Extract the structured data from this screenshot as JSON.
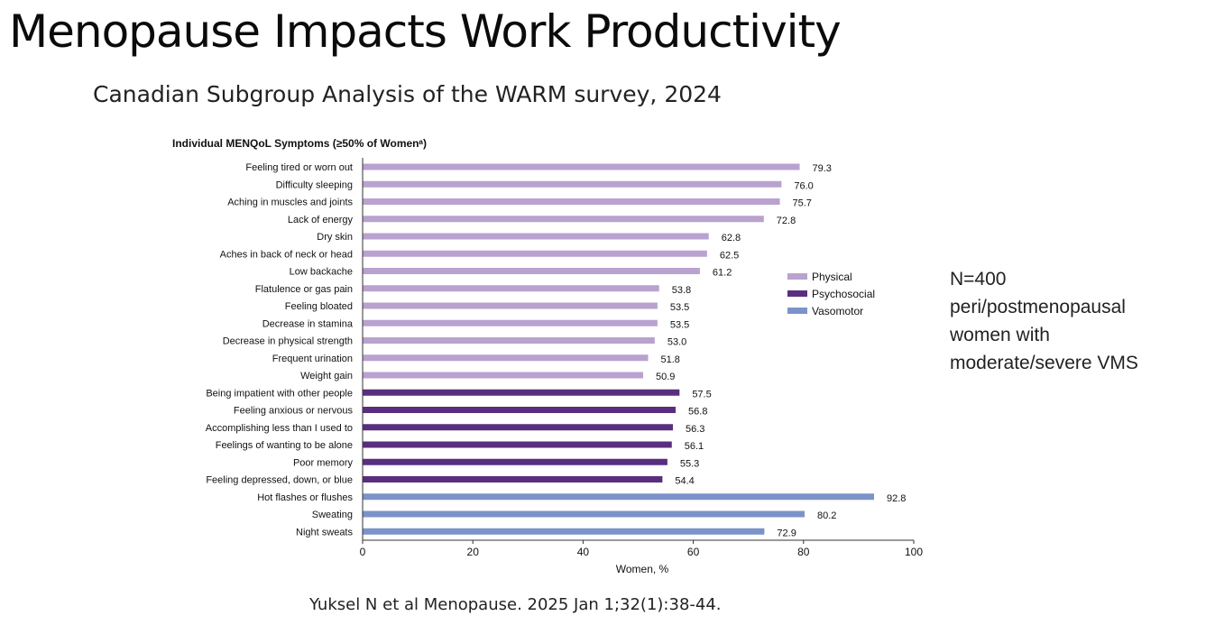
{
  "slide": {
    "title": "Menopause Impacts Work Productivity",
    "subtitle": "Canadian Subgroup Analysis of the WARM survey, 2024",
    "note_lines": [
      "N=400",
      "peri/postmenopausal",
      "women with",
      "moderate/severe VMS"
    ],
    "citation": "Yuksel N et al Menopause. 2025 Jan 1;32(1):38-44."
  },
  "chart_data": {
    "type": "bar",
    "orientation": "horizontal",
    "title": "Individual MENQoL Symptoms (≥50% of Womenᵃ)",
    "xlabel": "Women, %",
    "xlim": [
      0,
      100
    ],
    "xticks": [
      0,
      20,
      40,
      60,
      80,
      100
    ],
    "grid": false,
    "legend_position": "right",
    "series": [
      {
        "name": "Physical",
        "color": "#b9a2cf"
      },
      {
        "name": "Psychosocial",
        "color": "#5a2e7e"
      },
      {
        "name": "Vasomotor",
        "color": "#7b93c8"
      }
    ],
    "bars": [
      {
        "label": "Feeling tired or worn out",
        "value": 79.3,
        "series": "Physical"
      },
      {
        "label": "Difficulty sleeping",
        "value": 76.0,
        "series": "Physical"
      },
      {
        "label": "Aching in muscles and joints",
        "value": 75.7,
        "series": "Physical"
      },
      {
        "label": "Lack of energy",
        "value": 72.8,
        "series": "Physical"
      },
      {
        "label": "Dry skin",
        "value": 62.8,
        "series": "Physical"
      },
      {
        "label": "Aches in back of neck or head",
        "value": 62.5,
        "series": "Physical"
      },
      {
        "label": "Low backache",
        "value": 61.2,
        "series": "Physical"
      },
      {
        "label": "Flatulence or gas pain",
        "value": 53.8,
        "series": "Physical"
      },
      {
        "label": "Feeling bloated",
        "value": 53.5,
        "series": "Physical"
      },
      {
        "label": "Decrease in stamina",
        "value": 53.5,
        "series": "Physical"
      },
      {
        "label": "Decrease in physical strength",
        "value": 53.0,
        "series": "Physical"
      },
      {
        "label": "Frequent urination",
        "value": 51.8,
        "series": "Physical"
      },
      {
        "label": "Weight gain",
        "value": 50.9,
        "series": "Physical"
      },
      {
        "label": "Being impatient with other people",
        "value": 57.5,
        "series": "Psychosocial"
      },
      {
        "label": "Feeling anxious or nervous",
        "value": 56.8,
        "series": "Psychosocial"
      },
      {
        "label": "Accomplishing less than I used to",
        "value": 56.3,
        "series": "Psychosocial"
      },
      {
        "label": "Feelings of wanting to be alone",
        "value": 56.1,
        "series": "Psychosocial"
      },
      {
        "label": "Poor memory",
        "value": 55.3,
        "series": "Psychosocial"
      },
      {
        "label": "Feeling depressed, down, or blue",
        "value": 54.4,
        "series": "Psychosocial"
      },
      {
        "label": "Hot flashes or flushes",
        "value": 92.8,
        "series": "Vasomotor"
      },
      {
        "label": "Sweating",
        "value": 80.2,
        "series": "Vasomotor"
      },
      {
        "label": "Night sweats",
        "value": 72.9,
        "series": "Vasomotor"
      }
    ]
  }
}
